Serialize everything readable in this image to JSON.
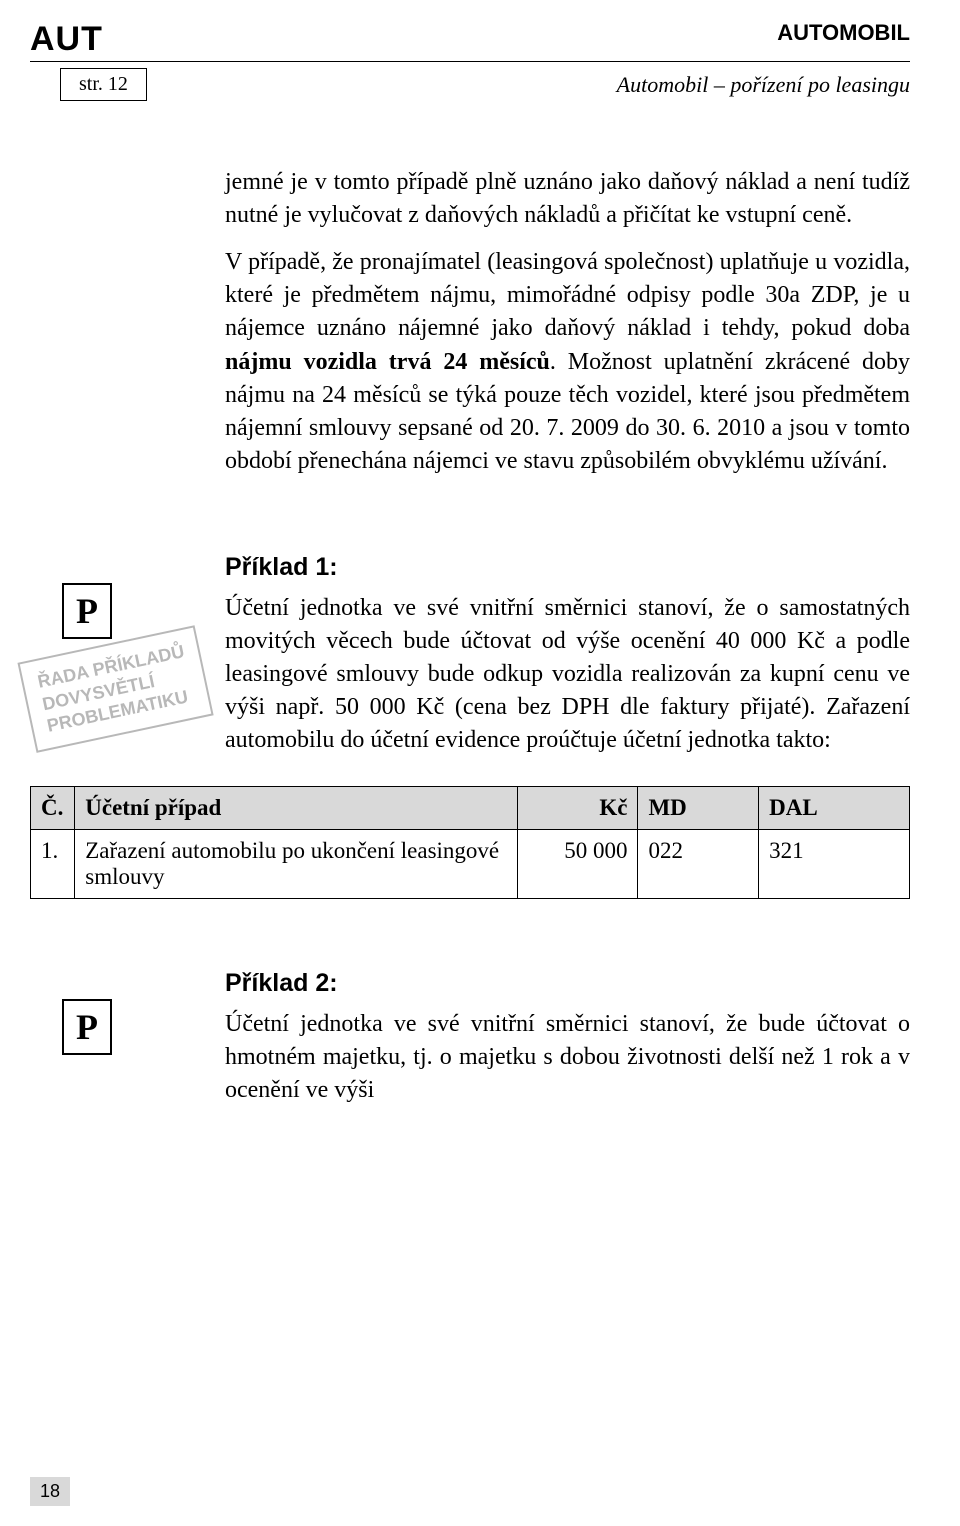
{
  "header": {
    "section_code": "AUT",
    "category": "AUTOMOBIL",
    "page_label": "str. 12",
    "subtitle": "Automobil – pořízení po leasingu"
  },
  "paragraphs": {
    "p1": "jemné je v tomto případě plně uznáno jako daňový náklad a není tudíž nutné je vylučovat z daňových nákladů a přičítat ke vstupní ceně.",
    "p2_a": "V případě, že pronajímatel (leasingová společnost) uplatňuje u vozidla, které je předmětem nájmu, mimořádné odpisy podle 30a ZDP, je u nájemce uznáno nájemné jako daňový náklad i tehdy, pokud doba ",
    "p2_b": "nájmu vozidla trvá 24 měsíců",
    "p2_c": ". Možnost uplatnění zkrácené doby nájmu na 24 měsíců se týká pouze těch vozidel, které jsou předmětem nájemní smlouvy sepsané od 20. 7. 2009 do 30. 6. 2010 a jsou v tomto období přenechána nájemci ve stavu způsobilém obvyklému užívání."
  },
  "example1": {
    "heading": "Příklad 1:",
    "text": "Účetní jednotka ve své vnitřní směrnici stanoví, že o samostatných movitých věcech bude účtovat od výše ocenění 40 000 Kč a podle leasingové smlouvy bude odkup vozidla realizován za kupní cenu ve výši např. 50 000 Kč (cena bez DPH dle faktury přijaté). Zařazení automobilu do účetní evidence proúčtuje účetní jednotka takto:",
    "marker": "P",
    "stamp": {
      "l1": "ŘADA PŘÍKLADŮ",
      "l2": "DOVYSVĚTLÍ",
      "l3": "PROBLEMATIKU"
    }
  },
  "table": {
    "columns": {
      "c": "Č.",
      "case": "Účetní případ",
      "kc": "Kč",
      "md": "MD",
      "dal": "DAL"
    },
    "rows": [
      {
        "c": "1.",
        "case": "Zařazení automobilu po ukončení leasingové smlouvy",
        "kc": "50 000",
        "md": "022",
        "dal": "321"
      }
    ]
  },
  "example2": {
    "heading": "Příklad 2:",
    "text": "Účetní jednotka ve své vnitřní směrnici stanoví, že bude účtovat o hmotném majetku, tj. o majetku s dobou životnosti delší než 1 rok a v ocenění ve výši",
    "marker": "P"
  },
  "footer": {
    "page_number": "18"
  }
}
